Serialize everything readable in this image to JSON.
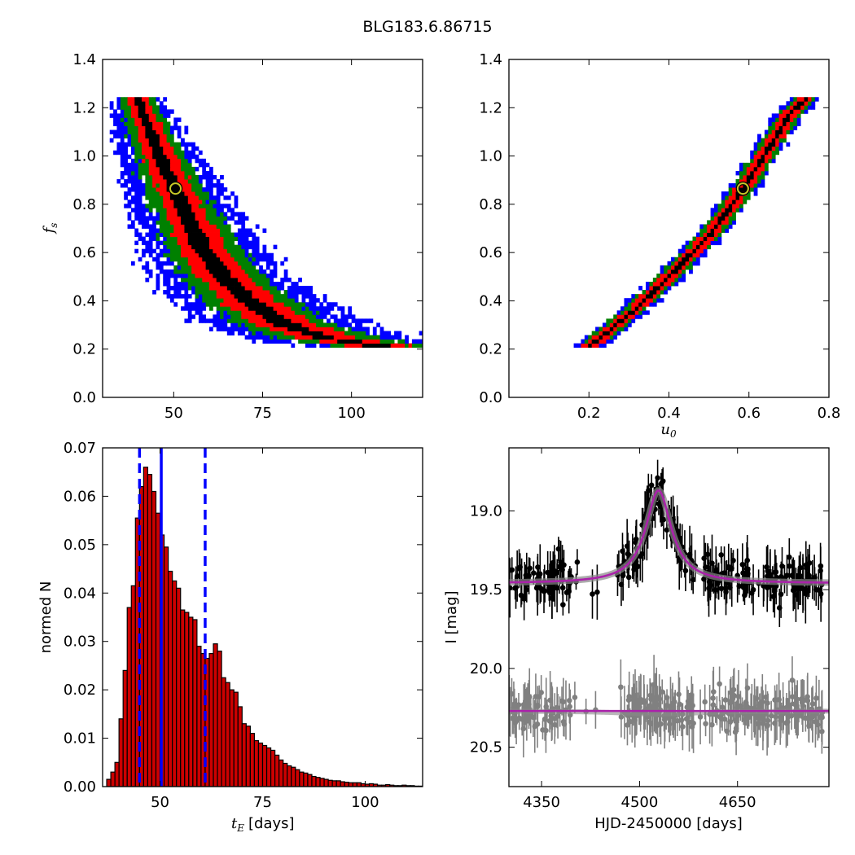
{
  "figure": {
    "title": "BLG183.6.86715"
  },
  "chart_data": [
    {
      "type": "heatmap",
      "panel": "top-left",
      "xlabel": "",
      "ylabel": "f_s",
      "xlim": [
        30,
        120
      ],
      "ylim": [
        0.0,
        1.4
      ],
      "xticks": [
        "50",
        "75",
        "100"
      ],
      "yticks": [
        "0.0",
        "0.2",
        "0.4",
        "0.6",
        "0.8",
        "1.0",
        "1.2",
        "1.4"
      ],
      "colors": [
        "#0000ff",
        "#008000",
        "#ff0000",
        "#000000"
      ],
      "best_fit": {
        "x": 50.5,
        "y": 0.865
      },
      "ridge": [
        [
          39,
          1.24
        ],
        [
          44,
          1.05
        ],
        [
          49,
          0.88
        ],
        [
          54,
          0.72
        ],
        [
          58,
          0.6
        ],
        [
          63,
          0.5
        ],
        [
          70,
          0.4
        ],
        [
          80,
          0.3
        ],
        [
          92,
          0.24
        ],
        [
          110,
          0.2
        ]
      ]
    },
    {
      "type": "heatmap",
      "panel": "top-right",
      "xlabel": "u_0",
      "ylabel": "",
      "xlim": [
        0.0,
        0.8
      ],
      "ylim": [
        0.0,
        1.4
      ],
      "xticks": [
        "0.2",
        "0.4",
        "0.6",
        "0.8"
      ],
      "yticks": [
        "0.0",
        "0.2",
        "0.4",
        "0.6",
        "0.8",
        "1.0",
        "1.2",
        "1.4"
      ],
      "colors": [
        "#0000ff",
        "#008000",
        "#ff0000",
        "#000000"
      ],
      "best_fit": {
        "x": 0.585,
        "y": 0.865
      },
      "ridge": [
        [
          0.195,
          0.2
        ],
        [
          0.3,
          0.34
        ],
        [
          0.4,
          0.5
        ],
        [
          0.5,
          0.67
        ],
        [
          0.585,
          0.865
        ],
        [
          0.65,
          1.04
        ],
        [
          0.7,
          1.17
        ],
        [
          0.745,
          1.24
        ]
      ]
    },
    {
      "type": "bar",
      "panel": "bottom-left",
      "xlabel": "t_E [days]",
      "ylabel": "normed N",
      "xlim": [
        36,
        114
      ],
      "ylim": [
        0.0,
        0.07
      ],
      "xticks": [
        "50",
        "75",
        "100"
      ],
      "yticks": [
        "0.00",
        "0.01",
        "0.02",
        "0.03",
        "0.04",
        "0.05",
        "0.06",
        "0.07"
      ],
      "bin_start": 37,
      "bin_width": 1,
      "values": [
        0.0015,
        0.003,
        0.005,
        0.014,
        0.024,
        0.037,
        0.0415,
        0.0555,
        0.062,
        0.066,
        0.0645,
        0.061,
        0.0565,
        0.052,
        0.0495,
        0.0445,
        0.0425,
        0.041,
        0.0365,
        0.036,
        0.035,
        0.0345,
        0.029,
        0.0275,
        0.0265,
        0.0275,
        0.0295,
        0.028,
        0.0225,
        0.0215,
        0.02,
        0.0195,
        0.0165,
        0.013,
        0.0125,
        0.011,
        0.0095,
        0.009,
        0.0085,
        0.008,
        0.0075,
        0.0065,
        0.0055,
        0.0048,
        0.0043,
        0.004,
        0.0035,
        0.003,
        0.0028,
        0.0025,
        0.0021,
        0.0019,
        0.0017,
        0.0015,
        0.0013,
        0.0012,
        0.0012,
        0.001,
        0.0009,
        0.0008,
        0.0008,
        0.0008,
        0.0006,
        0.0005,
        0.0006,
        0.0005,
        0.0003,
        0.0003,
        0.0004,
        0.0003,
        0.0002,
        0.0002,
        0.0003,
        0.0002,
        0.0002,
        0.0001,
        0.0001
      ],
      "bar_color": "#cc0000",
      "vlines": [
        {
          "x": 50.3,
          "style": "solid",
          "color": "#0000ff"
        },
        {
          "x": 45.0,
          "style": "dashed",
          "color": "#0000ff"
        },
        {
          "x": 61.0,
          "style": "dashed",
          "color": "#0000ff"
        }
      ]
    },
    {
      "type": "scatter",
      "panel": "bottom-right",
      "xlabel": "HJD-2450000 [days]",
      "ylabel": "I [mag]",
      "xlim": [
        4300,
        4790
      ],
      "ylim": [
        20.75,
        18.6
      ],
      "xticks": [
        "4350",
        "4500",
        "4650"
      ],
      "yticks": [
        "19.0",
        "19.5",
        "20.0",
        "20.5"
      ],
      "model": {
        "t0": 4529,
        "peak_mag": 18.87,
        "baseline_mag": 19.46,
        "width_days": 24,
        "color": "#aa22aa"
      },
      "residual_baseline": 20.27,
      "series": [
        {
          "color": "#000000",
          "x_range": [
            4300,
            4780
          ],
          "n": 320,
          "scatter": 0.13
        },
        {
          "color": "#808080",
          "x_range": [
            4300,
            4780
          ],
          "n": 320,
          "scatter": 0.13
        }
      ]
    }
  ]
}
